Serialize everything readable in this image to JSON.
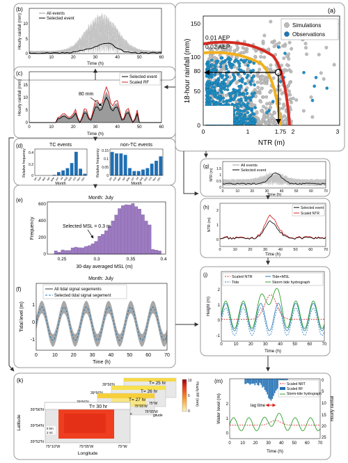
{
  "panels": {
    "a": {
      "letter": "(a)",
      "ylabel": "18-hour rainfall (mm)",
      "xlabel": "NTR (m)",
      "xticks": [
        "0",
        "1",
        "1.75",
        "2",
        "3"
      ],
      "yticks": [
        "0",
        "50",
        "80",
        "100",
        "150"
      ],
      "aep1": "0.01 AEP",
      "aep2": "0.02 AEP",
      "legend": [
        "Simulations",
        "Observations"
      ]
    },
    "b": {
      "letter": "(b)",
      "ylabel": "Hourly rainfall (mm)",
      "xlabel": "Time (h)",
      "xticks": [
        "0",
        "10",
        "20",
        "30",
        "40",
        "50",
        "60"
      ],
      "yticks": [
        "0",
        "5",
        "10"
      ],
      "legend": [
        "All events",
        "Selected event"
      ]
    },
    "c": {
      "letter": "(c)",
      "ylabel": "Hourly rainfall (mm)",
      "xlabel": "Time (h)",
      "xticks": [
        "0",
        "10",
        "20",
        "30",
        "40",
        "50",
        "60"
      ],
      "yticks": [
        "0",
        "5",
        "10",
        "15"
      ],
      "legend": [
        "Selected event",
        "Scaled RF"
      ],
      "annotation": "80 mm"
    },
    "d": {
      "letter": "(d)",
      "left_title": "TC events",
      "right_title": "non-TC events",
      "ylabel": "Relative frequency",
      "xlabel": "Month",
      "left_yticks": [
        "0",
        "0.2",
        "0.4"
      ],
      "right_yticks": [
        "0",
        "0.05",
        "0.1",
        "0.15"
      ],
      "months": [
        "Jan",
        "Feb",
        "Mar",
        "Apr",
        "May",
        "Jun",
        "Jul",
        "Aug",
        "Sep",
        "Oct",
        "Nov",
        "Dec"
      ]
    },
    "e": {
      "letter": "(e)",
      "title": "Month: July",
      "ylabel": "Frequency",
      "xlabel": "30-day averaged MSL (m)",
      "xticks": [
        "0.25",
        "0.3",
        "0.35",
        "0.4"
      ],
      "yticks": [
        "0",
        "200",
        "400",
        "600"
      ],
      "annotation": "Selected MSL = 0.3 m"
    },
    "f": {
      "letter": "(f)",
      "title": "Month: July",
      "ylabel": "Tidal level (m)",
      "xlabel": "Time (h)",
      "xticks": [
        "0",
        "10",
        "20",
        "30",
        "40",
        "50",
        "60",
        "70"
      ],
      "yticks": [
        "-1",
        "0",
        "1"
      ],
      "legend": [
        "All tidal signal segements",
        "Selected tidal signal segement"
      ]
    },
    "g": {
      "letter": "(g)",
      "ylabel": "NTR (m)",
      "xlabel": "Time (h)",
      "xticks": [
        "0",
        "10",
        "20",
        "30",
        "40",
        "50",
        "60",
        "70"
      ],
      "yticks": [
        "0",
        "0.5",
        "1",
        "1.5"
      ],
      "legend": [
        "All events",
        "Selected event"
      ]
    },
    "h": {
      "letter": "(h)",
      "ylabel": "NTR (m)",
      "xlabel": "Time (h)",
      "xticks": [
        "0",
        "10",
        "20",
        "30",
        "40",
        "50",
        "60",
        "70"
      ],
      "yticks": [
        "0",
        "1",
        "2"
      ],
      "legend": [
        "Selected event",
        "Scaled NTR"
      ]
    },
    "j": {
      "letter": "(j)",
      "ylabel": "Height (m)",
      "xlabel": "Time (h)",
      "xticks": [
        "0",
        "10",
        "20",
        "30",
        "40",
        "50",
        "60",
        "70"
      ],
      "yticks": [
        "-1",
        "0",
        "1",
        "2"
      ],
      "legend": [
        "Scaled NTR",
        "Tide",
        "Tide+MSL",
        "Storm tide hydrograph"
      ]
    },
    "k": {
      "letter": "(k)",
      "times": [
        "T= 25 hr",
        "T= 26 hr",
        "T= 27 hr",
        "T= 30 hr"
      ],
      "lat_ticks": [
        "39°56'N",
        "39°54'N",
        "39°52'N"
      ],
      "lon_ticks": [
        "75°10'W",
        "75°05'W",
        "75°W"
      ],
      "back_lat": [
        "39°56'N",
        "39°56'N",
        "39°56'N"
      ],
      "back_lon": [
        "75°05'W",
        "75°05'W",
        "75°W"
      ],
      "partial_labels": [
        "gitude",
        "gitude"
      ],
      "ylabel": "Latitude",
      "xlabel": "Longitude",
      "cbar_label": "Hourly RF (mm)",
      "cbar_ticks": [
        "0",
        "5",
        "10"
      ],
      "scale1": "5 km",
      "scale2": "2 mi",
      "lude": "lude"
    },
    "m": {
      "letter": "(m)",
      "ylabel": "Water level (m)",
      "ylabel2": "Hourly rainfall",
      "xlabel": "Time (h)",
      "xticks": [
        "0",
        "10",
        "20",
        "30",
        "40",
        "50",
        "60",
        "70"
      ],
      "yticks": [
        "0",
        "1",
        "2"
      ],
      "yticks2": [
        "0",
        "5",
        "10",
        "15",
        "20",
        "25"
      ],
      "legend": [
        "Scaled NRT",
        "Scaled RF",
        "Storm-tide hydrograph"
      ],
      "annotation": "lag time"
    }
  },
  "colors": {
    "selected": "#000000",
    "scaled": "#d62728",
    "simulations": "#bbbbbb",
    "observations": "#1f77b4",
    "bars": "#1f6fb4",
    "hist": "#9d7ac2",
    "aep1": "#d42a20",
    "aep2": "#f2b01e",
    "tide": "#1f77b4",
    "storm": "#2ca02c"
  }
}
